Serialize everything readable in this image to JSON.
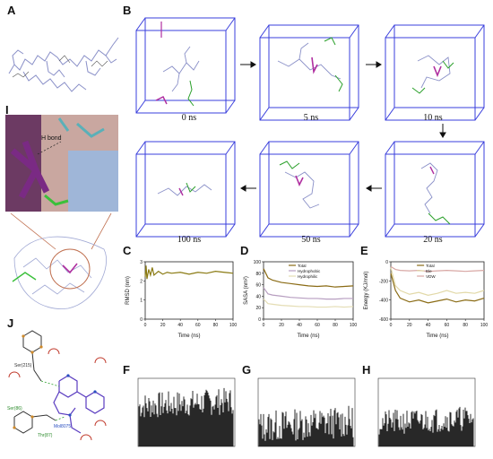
{
  "panels": {
    "A": "A",
    "B": "B",
    "C": "C",
    "D": "D",
    "E": "E",
    "F": "F",
    "G": "G",
    "H": "H",
    "I": "I",
    "J": "J"
  },
  "md_frames": {
    "f0": "0 ns",
    "f5": "5 ns",
    "f10": "10 ns",
    "f20": "20 ns",
    "f50": "50 ns",
    "f100": "100 ns"
  },
  "panel_i": {
    "hbond_label": "H bond"
  },
  "panel_j": {
    "ligand_label": "Mol8075",
    "res_top": "Ser(215)",
    "res_left": "Ser(86)",
    "res_mid": "Thr(87)"
  },
  "colors": {
    "box": "#3a3fdc",
    "rmsd": "#8a7a12",
    "total": "#8a6b14",
    "hydrophobic": "#b79ec0",
    "hydrophilic": "#e4ddb4",
    "vdw": "#d8a7a4",
    "ele": "#e2d9a8"
  },
  "chart_data": [
    {
      "type": "line",
      "panel": "C",
      "ylabel": "RMSD (nm)",
      "xlabel": "Time (ns)",
      "xlim": [
        0,
        100
      ],
      "ylim": [
        0,
        3
      ],
      "xticks": [
        "0",
        "20",
        "40",
        "60",
        "80",
        "100"
      ],
      "yticks": [
        "0",
        "1",
        "2",
        "3"
      ],
      "series": [
        {
          "x": [
            0,
            1,
            2,
            4,
            6,
            8,
            10,
            15,
            20,
            25,
            30,
            40,
            50,
            60,
            70,
            80,
            90,
            100
          ],
          "values": [
            2.2,
            2.8,
            2.1,
            2.6,
            2.3,
            2.7,
            2.3,
            2.5,
            2.35,
            2.45,
            2.4,
            2.45,
            2.35,
            2.45,
            2.4,
            2.5,
            2.45,
            2.4
          ]
        }
      ]
    },
    {
      "type": "line",
      "panel": "D",
      "ylabel": "SASA (nm²)",
      "xlabel": "Time (ns)",
      "xlim": [
        0,
        100
      ],
      "ylim": [
        0,
        100
      ],
      "xticks": [
        "0",
        "20",
        "40",
        "60",
        "80",
        "100"
      ],
      "yticks": [
        "0",
        "20",
        "40",
        "60",
        "80",
        "100"
      ],
      "legend": [
        "Total",
        "Hydrophobic",
        "Hydrophilic"
      ],
      "series": [
        {
          "name": "Total",
          "x": [
            0,
            5,
            10,
            20,
            30,
            40,
            50,
            60,
            70,
            80,
            90,
            100
          ],
          "values": [
            88,
            72,
            68,
            64,
            62,
            60,
            58,
            57,
            58,
            56,
            57,
            58
          ]
        },
        {
          "name": "Hydrophobic",
          "x": [
            0,
            5,
            10,
            20,
            30,
            40,
            50,
            60,
            70,
            80,
            90,
            100
          ],
          "values": [
            55,
            44,
            42,
            40,
            38,
            37,
            36,
            36,
            35,
            35,
            36,
            36
          ]
        },
        {
          "name": "Hydrophilic",
          "x": [
            0,
            5,
            10,
            20,
            30,
            40,
            50,
            60,
            70,
            80,
            90,
            100
          ],
          "values": [
            35,
            27,
            26,
            24,
            23,
            22,
            22,
            21,
            21,
            22,
            21,
            22
          ]
        }
      ]
    },
    {
      "type": "line",
      "panel": "E",
      "ylabel": "Energy (KJ/mol)",
      "xlabel": "Time (ns)",
      "xlim": [
        0,
        100
      ],
      "ylim": [
        -600,
        0
      ],
      "xticks": [
        "0",
        "20",
        "40",
        "60",
        "80",
        "100"
      ],
      "yticks": [
        "0",
        "-200",
        "-400",
        "-600"
      ],
      "legend": [
        "Total",
        "Ele",
        "VDW"
      ],
      "series": [
        {
          "name": "Total",
          "x": [
            0,
            5,
            10,
            20,
            30,
            40,
            50,
            60,
            70,
            80,
            90,
            100
          ],
          "values": [
            -120,
            -300,
            -380,
            -420,
            -400,
            -430,
            -410,
            -390,
            -420,
            -400,
            -410,
            -380
          ]
        },
        {
          "name": "Ele",
          "x": [
            0,
            5,
            10,
            20,
            30,
            40,
            50,
            60,
            70,
            80,
            90,
            100
          ],
          "values": [
            -60,
            -250,
            -300,
            -340,
            -320,
            -350,
            -330,
            -300,
            -330,
            -320,
            -330,
            -300
          ]
        },
        {
          "name": "VDW",
          "x": [
            0,
            5,
            10,
            20,
            30,
            40,
            50,
            60,
            70,
            80,
            90,
            100
          ],
          "values": [
            -50,
            -80,
            -90,
            -95,
            -90,
            -100,
            -95,
            -90,
            -95,
            -100,
            -95,
            -90
          ]
        }
      ]
    }
  ]
}
